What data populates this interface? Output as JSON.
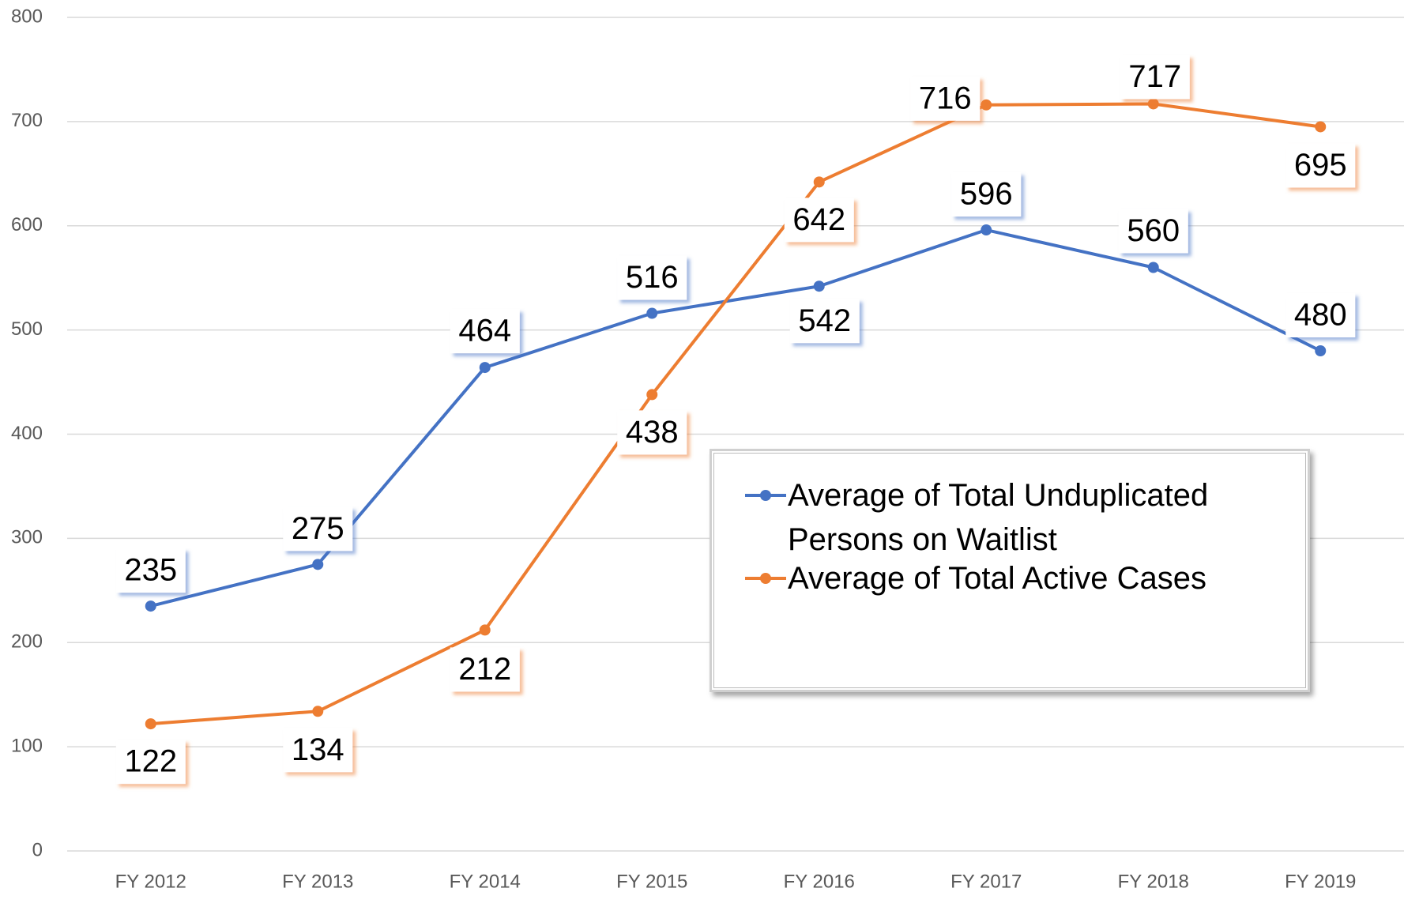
{
  "chart_data": {
    "type": "line",
    "categories": [
      "FY 2012",
      "FY 2013",
      "FY 2014",
      "FY 2015",
      "FY 2016",
      "FY 2017",
      "FY 2018",
      "FY 2019"
    ],
    "series": [
      {
        "name": "Average of Total Unduplicated Persons on Waitlist",
        "color": "#4472c4",
        "values": [
          235,
          275,
          464,
          516,
          542,
          596,
          560,
          480
        ]
      },
      {
        "name": "Average of Total Active Cases",
        "color": "#ed7d31",
        "values": [
          122,
          134,
          212,
          438,
          642,
          716,
          717,
          695
        ]
      }
    ],
    "ylim": [
      0,
      800
    ],
    "yticks": [
      0,
      100,
      200,
      300,
      400,
      500,
      600,
      700,
      800
    ],
    "grid": true,
    "legend": "right"
  }
}
